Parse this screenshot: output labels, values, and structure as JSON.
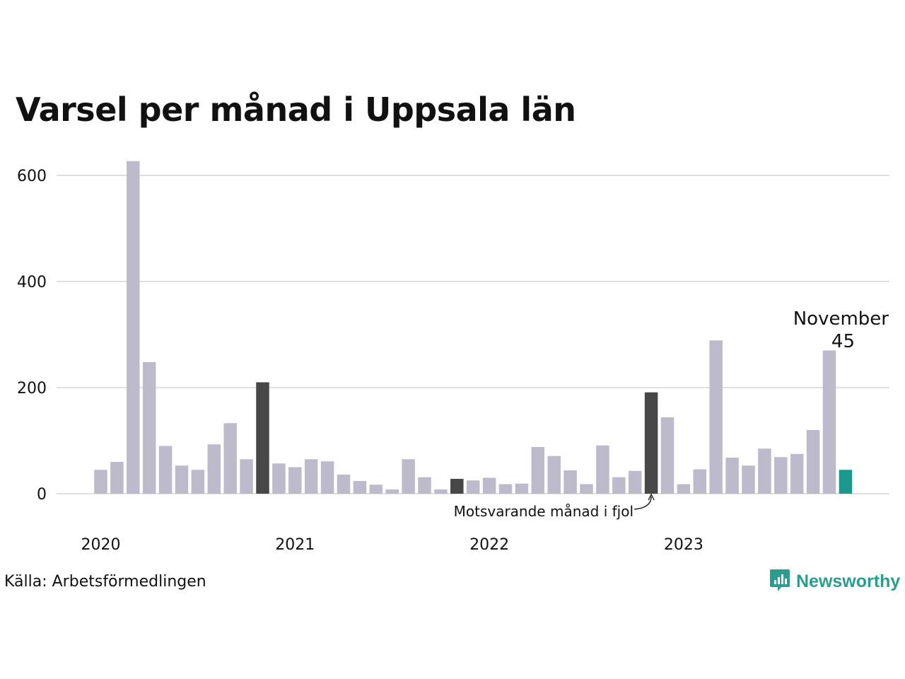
{
  "title": "Varsel per månad i Uppsala län",
  "source": "Källa: Arbetsförmedlingen",
  "brand": {
    "name": "Newsworthy",
    "icon": "newsworthy-chart-icon"
  },
  "colors": {
    "default_bar": "#bdbbcb",
    "highlight_bar": "#474747",
    "current_bar": "#1a9a8c",
    "grid": "#e0e0e0",
    "brand": "#2a9d8f"
  },
  "chart_data": {
    "type": "bar",
    "title": "Varsel per månad i Uppsala län",
    "xlabel": "",
    "ylabel": "",
    "ylim": [
      0,
      630
    ],
    "y_ticks": [
      0,
      200,
      400,
      600
    ],
    "x_tick_labels": [
      {
        "label": "2020",
        "index": 0
      },
      {
        "label": "2021",
        "index": 12
      },
      {
        "label": "2022",
        "index": 24
      },
      {
        "label": "2023",
        "index": 36
      }
    ],
    "grid": true,
    "start_month": "2020-01",
    "values": [
      45,
      60,
      627,
      248,
      90,
      53,
      45,
      93,
      133,
      65,
      210,
      57,
      50,
      65,
      61,
      36,
      24,
      17,
      8,
      65,
      31,
      8,
      28,
      25,
      30,
      18,
      19,
      88,
      71,
      44,
      18,
      91,
      31,
      43,
      191,
      144,
      18,
      46,
      289,
      68,
      53,
      85,
      69,
      75,
      120,
      270,
      45
    ],
    "highlight_indices": [
      10,
      22,
      34
    ],
    "current_index": 46,
    "annotations": {
      "current_month": "November",
      "current_value": "45",
      "previous_year": "Motsvarande månad i fjol"
    }
  }
}
